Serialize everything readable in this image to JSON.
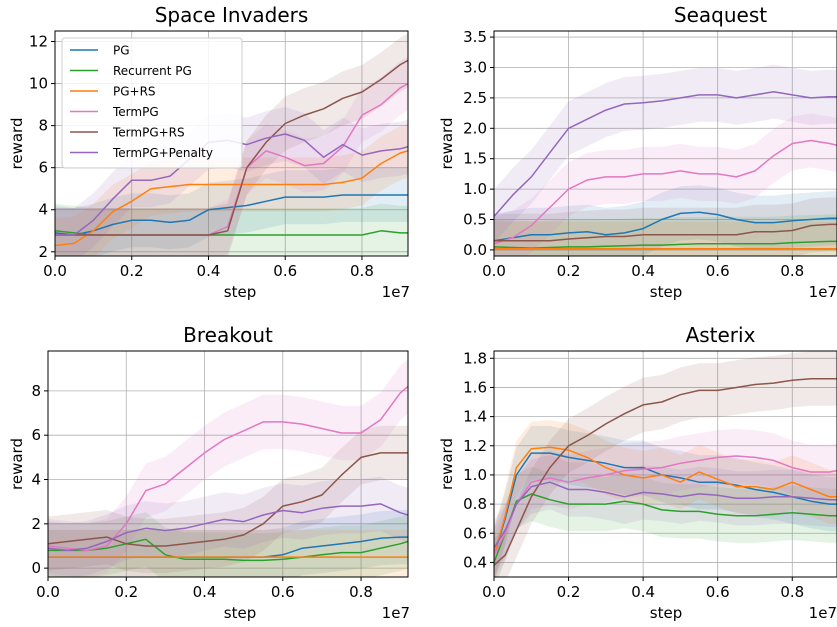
{
  "xlabel": "step",
  "ylabel": "reward",
  "offset_text": "1e7",
  "colors": {
    "PG": "#1f77b4",
    "Recurrent PG": "#2ca02c",
    "PG+RS": "#ff7f0e",
    "TermPG": "#e377c2",
    "TermPG+RS": "#8c564b",
    "TermPG+Penalty": "#9467bd"
  },
  "legend": [
    "PG",
    "Recurrent PG",
    "PG+RS",
    "TermPG",
    "TermPG+RS",
    "TermPG+Penalty"
  ],
  "chart_data": [
    {
      "type": "line",
      "title": "Space Invaders",
      "xlabel": "step",
      "ylabel": "reward",
      "x_scale": "1e7",
      "xlim": [
        0,
        0.92
      ],
      "ylim": [
        1.8,
        12.5
      ],
      "xticks": [
        "0.0",
        "0.2",
        "0.4",
        "0.6",
        "0.8"
      ],
      "yticks": [
        2,
        4,
        6,
        8,
        10,
        12
      ],
      "grid": true,
      "legend": "top-left",
      "x": [
        0,
        0.05,
        0.1,
        0.15,
        0.2,
        0.25,
        0.3,
        0.35,
        0.4,
        0.45,
        0.5,
        0.55,
        0.6,
        0.65,
        0.7,
        0.75,
        0.8,
        0.85,
        0.9,
        0.92
      ],
      "series": [
        {
          "name": "PG",
          "values": [
            2.9,
            2.8,
            3.0,
            3.3,
            3.5,
            3.5,
            3.4,
            3.5,
            4.0,
            4.1,
            4.2,
            4.4,
            4.6,
            4.6,
            4.6,
            4.7,
            4.7,
            4.7,
            4.7,
            4.7
          ]
        },
        {
          "name": "Recurrent PG",
          "values": [
            3.0,
            2.9,
            2.8,
            2.8,
            2.8,
            2.8,
            2.8,
            2.8,
            2.8,
            2.8,
            2.8,
            2.8,
            2.8,
            2.8,
            2.8,
            2.8,
            2.8,
            3.0,
            2.9,
            2.9
          ]
        },
        {
          "name": "PG+RS",
          "values": [
            2.3,
            2.4,
            3.0,
            3.9,
            4.4,
            5.0,
            5.1,
            5.2,
            5.2,
            5.2,
            5.2,
            5.2,
            5.2,
            5.2,
            5.2,
            5.3,
            5.5,
            6.2,
            6.7,
            6.8
          ]
        },
        {
          "name": "TermPG",
          "values": [
            2.8,
            2.8,
            2.8,
            2.8,
            2.8,
            2.8,
            2.8,
            2.8,
            2.8,
            3.2,
            6.0,
            6.8,
            6.5,
            6.1,
            6.2,
            7.0,
            8.5,
            9.0,
            9.8,
            10.0
          ]
        },
        {
          "name": "TermPG+RS",
          "values": [
            2.8,
            2.8,
            2.8,
            2.8,
            2.8,
            2.8,
            2.8,
            2.8,
            2.8,
            3.0,
            6.0,
            7.2,
            8.1,
            8.5,
            8.8,
            9.3,
            9.6,
            10.2,
            10.9,
            11.1
          ]
        },
        {
          "name": "TermPG+Penalty",
          "values": [
            2.8,
            2.8,
            3.5,
            4.5,
            5.4,
            5.4,
            5.6,
            6.4,
            7.2,
            7.3,
            7.1,
            7.4,
            7.6,
            7.3,
            6.5,
            7.1,
            6.6,
            6.8,
            6.9,
            7.0
          ]
        }
      ]
    },
    {
      "type": "line",
      "title": "Seaquest",
      "xlabel": "step",
      "ylabel": "reward",
      "x_scale": "1e7",
      "xlim": [
        0,
        0.92
      ],
      "ylim": [
        -0.1,
        3.6
      ],
      "xticks": [
        "0.0",
        "0.2",
        "0.4",
        "0.6",
        "0.8"
      ],
      "yticks": [
        "0.0",
        "0.5",
        "1.0",
        "1.5",
        "2.0",
        "2.5",
        "3.0",
        "3.5"
      ],
      "grid": true,
      "x": [
        0,
        0.05,
        0.1,
        0.15,
        0.2,
        0.25,
        0.3,
        0.35,
        0.4,
        0.45,
        0.5,
        0.55,
        0.6,
        0.65,
        0.7,
        0.75,
        0.8,
        0.85,
        0.9,
        0.92
      ],
      "series": [
        {
          "name": "PG",
          "values": [
            0.15,
            0.2,
            0.25,
            0.25,
            0.28,
            0.3,
            0.25,
            0.28,
            0.35,
            0.5,
            0.6,
            0.62,
            0.58,
            0.5,
            0.45,
            0.45,
            0.48,
            0.5,
            0.52,
            0.52
          ]
        },
        {
          "name": "Recurrent PG",
          "values": [
            0.05,
            0.04,
            0.03,
            0.04,
            0.05,
            0.05,
            0.06,
            0.07,
            0.08,
            0.08,
            0.09,
            0.1,
            0.1,
            0.1,
            0.1,
            0.1,
            0.12,
            0.13,
            0.14,
            0.14
          ]
        },
        {
          "name": "PG+RS",
          "values": [
            0.02,
            0.02,
            0.02,
            0.02,
            0.02,
            0.02,
            0.02,
            0.02,
            0.02,
            0.02,
            0.02,
            0.02,
            0.02,
            0.02,
            0.02,
            0.02,
            0.02,
            0.02,
            0.02,
            0.02
          ]
        },
        {
          "name": "TermPG",
          "values": [
            0.1,
            0.2,
            0.4,
            0.7,
            1.0,
            1.15,
            1.2,
            1.2,
            1.25,
            1.25,
            1.3,
            1.25,
            1.25,
            1.2,
            1.3,
            1.55,
            1.75,
            1.8,
            1.75,
            1.72
          ]
        },
        {
          "name": "TermPG+RS",
          "values": [
            0.15,
            0.15,
            0.15,
            0.15,
            0.18,
            0.2,
            0.22,
            0.22,
            0.25,
            0.25,
            0.25,
            0.25,
            0.25,
            0.25,
            0.3,
            0.3,
            0.32,
            0.4,
            0.42,
            0.42
          ]
        },
        {
          "name": "TermPG+Penalty",
          "values": [
            0.55,
            0.9,
            1.2,
            1.6,
            2.0,
            2.15,
            2.3,
            2.4,
            2.42,
            2.45,
            2.5,
            2.55,
            2.55,
            2.5,
            2.55,
            2.6,
            2.55,
            2.5,
            2.52,
            2.52
          ]
        }
      ]
    },
    {
      "type": "line",
      "title": "Breakout",
      "xlabel": "step",
      "ylabel": "reward",
      "x_scale": "1e7",
      "xlim": [
        0,
        0.92
      ],
      "ylim": [
        -0.4,
        9.8
      ],
      "xticks": [
        "0.0",
        "0.2",
        "0.4",
        "0.6",
        "0.8"
      ],
      "yticks": [
        0,
        2,
        4,
        6,
        8
      ],
      "grid": true,
      "x": [
        0,
        0.05,
        0.1,
        0.15,
        0.2,
        0.25,
        0.3,
        0.35,
        0.4,
        0.45,
        0.5,
        0.55,
        0.6,
        0.65,
        0.7,
        0.75,
        0.8,
        0.85,
        0.9,
        0.92
      ],
      "series": [
        {
          "name": "PG",
          "values": [
            0.5,
            0.5,
            0.5,
            0.5,
            0.5,
            0.5,
            0.5,
            0.5,
            0.5,
            0.5,
            0.5,
            0.5,
            0.6,
            0.9,
            1.0,
            1.1,
            1.2,
            1.35,
            1.4,
            1.4
          ]
        },
        {
          "name": "Recurrent PG",
          "values": [
            0.8,
            0.8,
            0.8,
            0.9,
            1.1,
            1.3,
            0.6,
            0.4,
            0.4,
            0.4,
            0.35,
            0.35,
            0.4,
            0.5,
            0.6,
            0.7,
            0.7,
            0.9,
            1.1,
            1.2
          ]
        },
        {
          "name": "PG+RS",
          "values": [
            0.5,
            0.5,
            0.5,
            0.5,
            0.5,
            0.5,
            0.5,
            0.5,
            0.5,
            0.5,
            0.5,
            0.5,
            0.5,
            0.5,
            0.5,
            0.5,
            0.5,
            0.5,
            0.5,
            0.5
          ]
        },
        {
          "name": "TermPG",
          "values": [
            1.0,
            0.9,
            0.8,
            1.0,
            2.0,
            3.5,
            3.8,
            4.5,
            5.2,
            5.8,
            6.2,
            6.6,
            6.6,
            6.5,
            6.3,
            6.1,
            6.1,
            6.7,
            7.9,
            8.2
          ]
        },
        {
          "name": "TermPG+RS",
          "values": [
            1.1,
            1.2,
            1.3,
            1.4,
            1.1,
            1.0,
            1.0,
            1.1,
            1.2,
            1.3,
            1.5,
            2.0,
            2.8,
            3.0,
            3.3,
            4.2,
            5.0,
            5.2,
            5.2,
            5.2
          ]
        },
        {
          "name": "TermPG+Penalty",
          "values": [
            0.9,
            0.8,
            0.9,
            1.2,
            1.6,
            1.8,
            1.7,
            1.8,
            2.0,
            2.2,
            2.1,
            2.4,
            2.6,
            2.5,
            2.7,
            2.8,
            2.8,
            2.9,
            2.5,
            2.4
          ]
        }
      ]
    },
    {
      "type": "line",
      "title": "Asterix",
      "xlabel": "step",
      "ylabel": "reward",
      "x_scale": "1e7",
      "xlim": [
        0,
        0.92
      ],
      "ylim": [
        0.3,
        1.85
      ],
      "xticks": [
        "0.0",
        "0.2",
        "0.4",
        "0.6",
        "0.8"
      ],
      "yticks": [
        "0.4",
        "0.6",
        "0.8",
        "1.0",
        "1.2",
        "1.4",
        "1.6",
        "1.8"
      ],
      "grid": true,
      "x": [
        0,
        0.03,
        0.06,
        0.1,
        0.15,
        0.2,
        0.25,
        0.3,
        0.35,
        0.4,
        0.45,
        0.5,
        0.55,
        0.6,
        0.65,
        0.7,
        0.75,
        0.8,
        0.85,
        0.9,
        0.92
      ],
      "series": [
        {
          "name": "PG",
          "values": [
            0.45,
            0.7,
            1.0,
            1.15,
            1.15,
            1.12,
            1.1,
            1.08,
            1.05,
            1.05,
            1.0,
            0.98,
            0.95,
            0.95,
            0.93,
            0.9,
            0.88,
            0.85,
            0.82,
            0.8,
            0.8
          ]
        },
        {
          "name": "Recurrent PG",
          "values": [
            0.4,
            0.6,
            0.82,
            0.87,
            0.83,
            0.8,
            0.8,
            0.8,
            0.82,
            0.8,
            0.76,
            0.75,
            0.75,
            0.73,
            0.72,
            0.72,
            0.73,
            0.74,
            0.73,
            0.72,
            0.72
          ]
        },
        {
          "name": "PG+RS",
          "values": [
            0.45,
            0.72,
            1.05,
            1.18,
            1.19,
            1.17,
            1.12,
            1.05,
            1.0,
            0.98,
            1.0,
            0.95,
            1.02,
            0.97,
            0.92,
            0.92,
            0.9,
            0.95,
            0.9,
            0.85,
            0.85
          ]
        },
        {
          "name": "TermPG",
          "values": [
            0.45,
            0.6,
            0.8,
            0.95,
            0.98,
            0.95,
            0.98,
            1.0,
            1.03,
            1.04,
            1.05,
            1.08,
            1.1,
            1.12,
            1.13,
            1.12,
            1.1,
            1.05,
            1.02,
            1.02,
            1.03
          ]
        },
        {
          "name": "TermPG+RS",
          "values": [
            0.38,
            0.45,
            0.62,
            0.85,
            1.05,
            1.2,
            1.27,
            1.35,
            1.42,
            1.48,
            1.5,
            1.55,
            1.58,
            1.58,
            1.6,
            1.62,
            1.63,
            1.65,
            1.66,
            1.66,
            1.66
          ]
        },
        {
          "name": "TermPG+Penalty",
          "values": [
            0.5,
            0.62,
            0.8,
            0.92,
            0.95,
            0.9,
            0.9,
            0.88,
            0.85,
            0.88,
            0.87,
            0.85,
            0.87,
            0.86,
            0.84,
            0.84,
            0.85,
            0.85,
            0.84,
            0.83,
            0.83
          ]
        }
      ]
    }
  ]
}
